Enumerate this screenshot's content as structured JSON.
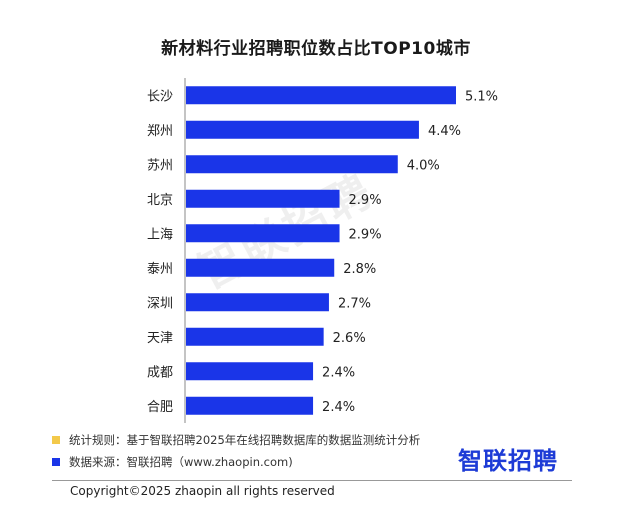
{
  "chart_data": {
    "type": "bar",
    "orientation": "horizontal",
    "title": "新材料行业招聘职位数占比TOP10城市",
    "categories": [
      "长沙",
      "郑州",
      "苏州",
      "北京",
      "上海",
      "泰州",
      "深圳",
      "天津",
      "成都",
      "合肥"
    ],
    "values": [
      5.1,
      4.4,
      4.0,
      2.9,
      2.9,
      2.8,
      2.7,
      2.6,
      2.4,
      2.4
    ],
    "value_labels": [
      "5.1%",
      "4.4%",
      "4.0%",
      "2.9%",
      "2.9%",
      "2.8%",
      "2.7%",
      "2.6%",
      "2.4%",
      "2.4%"
    ],
    "xlim": [
      0,
      5.1
    ],
    "grid": false,
    "legend": "none",
    "bar_color": "#1a35e8"
  },
  "watermark": "智联招聘",
  "footer": {
    "rule_label": "统计规则：基于智联招聘2025年在线招聘数据库的数据监测统计分析",
    "rule_color": "#f3c94a",
    "source_label": "数据来源：智联招聘（www.zhaopin.com)",
    "source_color": "#1a35e8",
    "brand_main": "智联招聘",
    "brand_color": "#1d3bd6",
    "copyright": "Copyright©2025 zhaopin all rights reserved"
  }
}
